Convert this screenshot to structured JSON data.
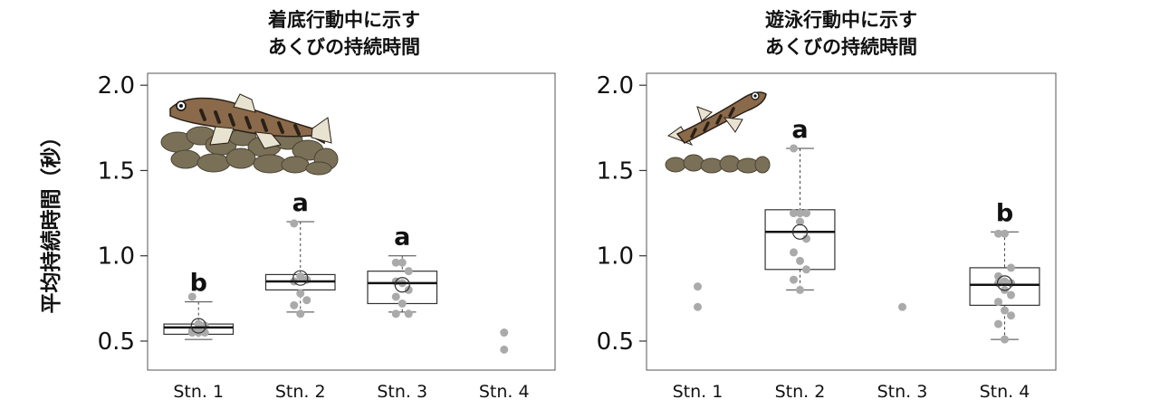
{
  "y_axis_title": "平均持続時間（秒）",
  "panels": [
    {
      "title_line1": "着底行動中に示す",
      "title_line2": "あくびの持続時間"
    },
    {
      "title_line1": "遊泳行動中に示す",
      "title_line2": "あくびの持続時間"
    }
  ],
  "colors": {
    "points": "#aaaaaa",
    "box": "#333333",
    "median": "#111111",
    "rock": "#7a7058",
    "fish": "#8a6a4a"
  },
  "chart_data": [
    {
      "type": "box",
      "title": "着底行動中に示す あくびの持続時間",
      "ylabel": "平均持続時間（秒）",
      "ylim": [
        0.33,
        2.07
      ],
      "yticks": [
        "0.5",
        "1.0",
        "1.5",
        "2.0"
      ],
      "categories": [
        "Stn. 1",
        "Stn. 2",
        "Stn. 3",
        "Stn. 4"
      ],
      "boxes": [
        {
          "category": "Stn. 1",
          "min": 0.51,
          "q1": 0.54,
          "median": 0.58,
          "q3": 0.6,
          "max": 0.73,
          "mean": 0.59,
          "points": [
            0.76,
            0.6,
            0.59,
            0.56,
            0.56,
            0.55,
            0.55,
            0.55
          ],
          "label": "b"
        },
        {
          "category": "Stn. 2",
          "min": 0.67,
          "q1": 0.8,
          "median": 0.85,
          "q3": 0.89,
          "max": 1.2,
          "mean": 0.87,
          "points": [
            1.19,
            0.88,
            0.86,
            0.85,
            0.78,
            0.74,
            0.71,
            0.66
          ],
          "label": "a"
        },
        {
          "category": "Stn. 3",
          "min": 0.67,
          "q1": 0.72,
          "median": 0.84,
          "q3": 0.91,
          "max": 1.0,
          "mean": 0.83,
          "points": [
            0.96,
            0.96,
            0.91,
            0.85,
            0.84,
            0.8,
            0.76,
            0.72,
            0.66,
            0.66
          ],
          "label": "a"
        },
        {
          "category": "Stn. 4",
          "points": [
            0.55,
            0.45
          ]
        }
      ]
    },
    {
      "type": "box",
      "title": "遊泳行動中に示す あくびの持続時間",
      "ylabel": "",
      "ylim": [
        0.33,
        2.07
      ],
      "yticks": [
        "0.5",
        "1.0",
        "1.5",
        "2.0"
      ],
      "categories": [
        "Stn. 1",
        "Stn. 2",
        "Stn. 3",
        "Stn. 4"
      ],
      "boxes": [
        {
          "category": "Stn. 1",
          "points": [
            0.82,
            0.7
          ]
        },
        {
          "category": "Stn. 2",
          "min": 0.8,
          "q1": 0.92,
          "median": 1.14,
          "q3": 1.27,
          "max": 1.63,
          "mean": 1.14,
          "points": [
            1.63,
            1.25,
            1.25,
            1.25,
            1.2,
            1.1,
            1.02,
            0.97,
            0.92,
            0.86,
            0.8
          ],
          "label": "a"
        },
        {
          "category": "Stn. 3",
          "points": [
            0.7
          ]
        },
        {
          "category": "Stn. 4",
          "min": 0.51,
          "q1": 0.71,
          "median": 0.83,
          "q3": 0.93,
          "max": 1.14,
          "mean": 0.84,
          "points": [
            1.13,
            1.13,
            0.93,
            0.88,
            0.85,
            0.84,
            0.84,
            0.8,
            0.77,
            0.73,
            0.68,
            0.65,
            0.6,
            0.51
          ],
          "label": "b"
        }
      ]
    }
  ]
}
